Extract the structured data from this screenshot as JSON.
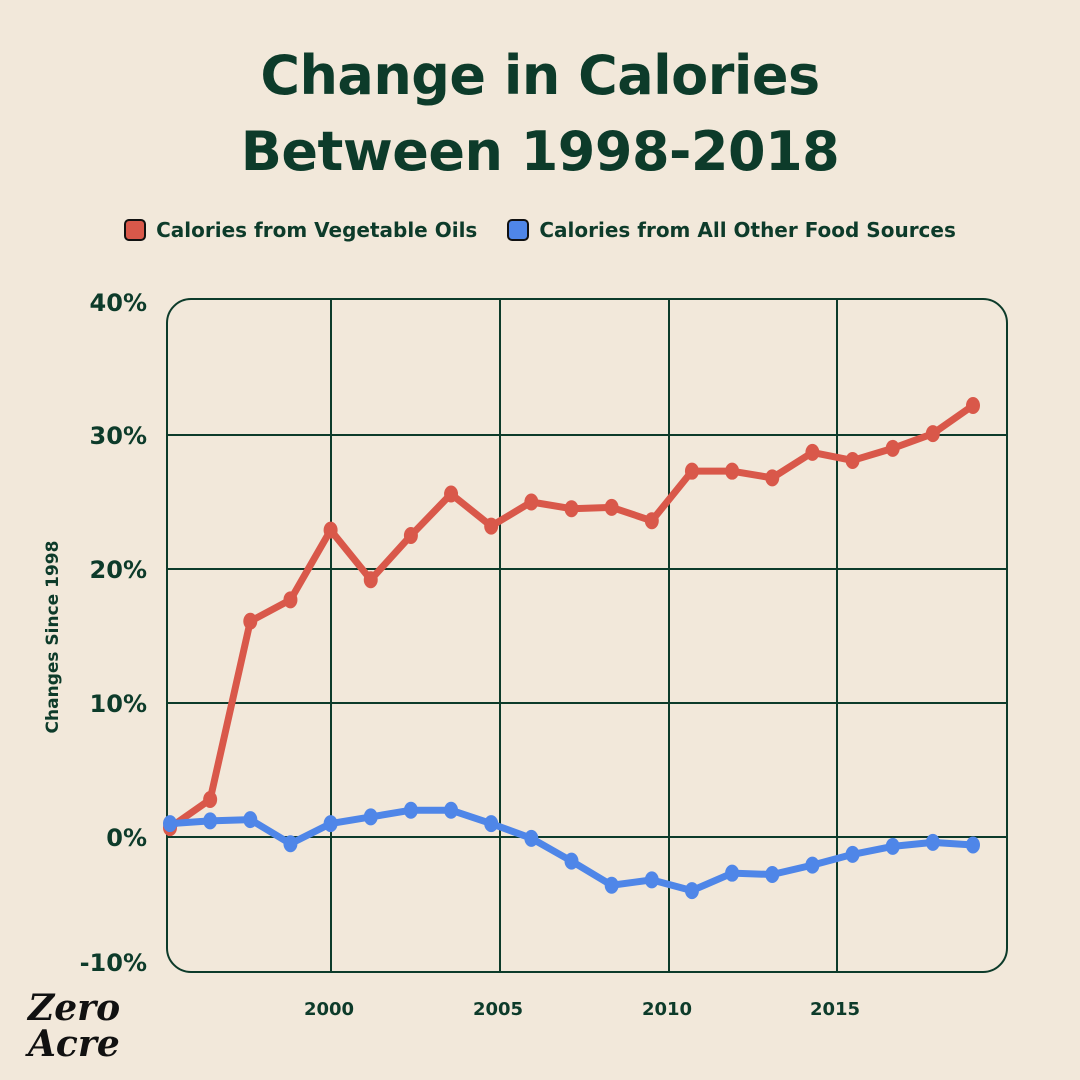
{
  "chart_data": {
    "type": "line",
    "title": [
      "Change in Calories",
      "Between 1998-2018"
    ],
    "ylabel": "Changes Since 1998",
    "xlabel": "",
    "ylim": [
      -10,
      40
    ],
    "y_ticks": [
      "40%",
      "30%",
      "20%",
      "10%",
      "0%",
      "-10%"
    ],
    "y_tick_values": [
      40,
      30,
      20,
      10,
      0,
      -10
    ],
    "x_ticks": [
      "2000",
      "2005",
      "2010",
      "2015"
    ],
    "grid": true,
    "legend_position": "top",
    "x": [
      1998,
      1999,
      2000,
      2001,
      2002,
      2003,
      2004,
      2005,
      2006,
      2007,
      2008,
      2009,
      2010,
      2011,
      2012,
      2013,
      2014,
      2015,
      2016,
      2017,
      2018
    ],
    "series": [
      {
        "name": "Calories from Vegetable Oils",
        "color": "#d9584a",
        "values": [
          0.7,
          2.8,
          16.1,
          17.7,
          22.9,
          19.2,
          22.5,
          25.6,
          23.2,
          25.0,
          24.5,
          24.6,
          23.6,
          27.3,
          27.3,
          26.8,
          28.7,
          28.1,
          29.0,
          30.1,
          32.2
        ]
      },
      {
        "name": "Calories from All Other Food Sources",
        "color": "#4f86e8",
        "values": [
          1.0,
          1.2,
          1.3,
          -0.5,
          1.0,
          1.5,
          2.0,
          2.0,
          1.0,
          -0.1,
          -1.8,
          -3.6,
          -3.2,
          -4.0,
          -2.7,
          -2.8,
          -2.1,
          -1.3,
          -0.7,
          -0.4,
          -0.6
        ]
      }
    ]
  },
  "brand": {
    "logo_text": [
      "Zero",
      "Acre"
    ]
  }
}
